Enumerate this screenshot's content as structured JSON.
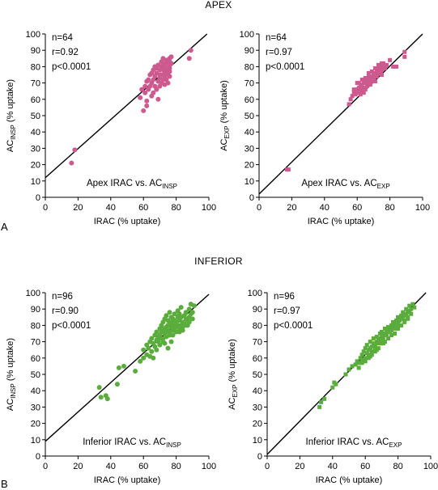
{
  "figure": {
    "section_a_title": "APEX",
    "section_b_title": "INFERIOR",
    "panel_a_letter": "A",
    "panel_b_letter": "B",
    "colors": {
      "apex_marker": "#cc5a8e",
      "inferior_marker": "#5aac3c",
      "line": "#000000"
    }
  },
  "chart_data": [
    {
      "id": "apex_insp",
      "type": "scatter",
      "marker": "circle",
      "xlabel": "IRAC (% uptake)",
      "ylabel_main": "AC",
      "ylabel_sub": "INSP",
      "ylabel_tail": " (% uptake)",
      "annotation_main": "Apex IRAC vs. AC",
      "annotation_sub": "INSP",
      "stats": [
        "n=64",
        "r=0.92",
        "p<0.0001"
      ],
      "xlim": [
        0,
        100
      ],
      "ylim": [
        0,
        100
      ],
      "xticks": [
        "0",
        "20",
        "40",
        "60",
        "80",
        "100"
      ],
      "yticks": [
        "0",
        "10",
        "20",
        "30",
        "40",
        "50",
        "60",
        "70",
        "80",
        "90",
        "100"
      ],
      "fit_line": {
        "intercept": 12,
        "slope": 0.89
      },
      "points": [
        [
          16,
          21
        ],
        [
          18,
          29
        ],
        [
          58,
          61
        ],
        [
          60,
          53
        ],
        [
          61,
          64
        ],
        [
          62,
          56
        ],
        [
          62,
          71
        ],
        [
          63,
          66
        ],
        [
          64,
          68
        ],
        [
          65,
          70
        ],
        [
          65,
          62
        ],
        [
          66,
          72
        ],
        [
          66,
          64
        ],
        [
          67,
          74
        ],
        [
          67,
          68
        ],
        [
          68,
          66
        ],
        [
          68,
          76
        ],
        [
          69,
          71
        ],
        [
          69,
          60
        ],
        [
          70,
          73
        ],
        [
          70,
          78
        ],
        [
          70,
          68
        ],
        [
          71,
          75
        ],
        [
          71,
          80
        ],
        [
          71,
          70
        ],
        [
          72,
          72
        ],
        [
          72,
          78
        ],
        [
          72,
          82
        ],
        [
          73,
          74
        ],
        [
          73,
          76
        ],
        [
          73,
          80
        ],
        [
          73,
          69
        ],
        [
          74,
          78
        ],
        [
          74,
          82
        ],
        [
          74,
          72
        ],
        [
          74,
          75
        ],
        [
          75,
          79
        ],
        [
          75,
          84
        ],
        [
          75,
          70
        ],
        [
          75,
          76
        ],
        [
          76,
          81
        ],
        [
          76,
          74
        ],
        [
          76,
          85
        ],
        [
          76,
          77
        ],
        [
          76,
          79
        ],
        [
          76,
          83
        ],
        [
          77,
          82
        ],
        [
          77,
          86
        ],
        [
          65,
          76
        ],
        [
          66,
          78
        ],
        [
          67,
          80
        ],
        [
          68,
          79
        ],
        [
          69,
          81
        ],
        [
          70,
          75
        ],
        [
          71,
          83
        ],
        [
          63,
          72
        ],
        [
          64,
          75
        ],
        [
          72,
          85
        ],
        [
          61,
          68
        ],
        [
          59,
          66
        ],
        [
          62,
          59
        ],
        [
          89,
          90
        ],
        [
          88,
          85
        ],
        [
          74,
          84
        ]
      ]
    },
    {
      "id": "apex_exp",
      "type": "scatter",
      "marker": "square",
      "xlabel": "IRAC (% uptake)",
      "ylabel_main": "AC",
      "ylabel_sub": "EXP",
      "ylabel_tail": " (% uptake)",
      "annotation_main": "Apex IRAC vs. AC",
      "annotation_sub": "EXP",
      "stats": [
        "n=64",
        "r=0.97",
        "p<0.0001"
      ],
      "xlim": [
        0,
        100
      ],
      "ylim": [
        0,
        100
      ],
      "xticks": [
        "0",
        "20",
        "40",
        "60",
        "80",
        "100"
      ],
      "yticks": [
        "0",
        "10",
        "20",
        "30",
        "40",
        "50",
        "60",
        "70",
        "80",
        "90",
        "100"
      ],
      "fit_line": {
        "intercept": 2,
        "slope": 0.98
      },
      "points": [
        [
          17,
          17
        ],
        [
          18,
          17
        ],
        [
          55,
          57
        ],
        [
          56,
          60
        ],
        [
          57,
          62
        ],
        [
          58,
          64
        ],
        [
          59,
          63
        ],
        [
          60,
          66
        ],
        [
          60,
          64
        ],
        [
          61,
          67
        ],
        [
          62,
          65
        ],
        [
          62,
          69
        ],
        [
          63,
          68
        ],
        [
          63,
          66
        ],
        [
          64,
          70
        ],
        [
          64,
          67
        ],
        [
          65,
          71
        ],
        [
          65,
          66
        ],
        [
          66,
          72
        ],
        [
          66,
          69
        ],
        [
          67,
          70
        ],
        [
          67,
          74
        ],
        [
          68,
          72
        ],
        [
          68,
          69
        ],
        [
          69,
          74
        ],
        [
          69,
          71
        ],
        [
          70,
          76
        ],
        [
          70,
          73
        ],
        [
          71,
          75
        ],
        [
          71,
          71
        ],
        [
          72,
          78
        ],
        [
          72,
          74
        ],
        [
          73,
          77
        ],
        [
          73,
          79
        ],
        [
          74,
          76
        ],
        [
          74,
          80
        ],
        [
          75,
          78
        ],
        [
          75,
          75
        ],
        [
          76,
          80
        ],
        [
          76,
          82
        ],
        [
          77,
          79
        ],
        [
          78,
          81
        ],
        [
          80,
          84
        ],
        [
          82,
          80
        ],
        [
          84,
          80
        ],
        [
          89,
          89
        ],
        [
          89,
          86
        ],
        [
          58,
          66
        ],
        [
          60,
          70
        ],
        [
          61,
          70
        ],
        [
          63,
          72
        ],
        [
          65,
          73
        ],
        [
          67,
          76
        ],
        [
          69,
          77
        ],
        [
          71,
          79
        ],
        [
          73,
          81
        ],
        [
          75,
          82
        ],
        [
          62,
          63
        ],
        [
          64,
          64
        ],
        [
          66,
          68
        ],
        [
          68,
          70
        ],
        [
          70,
          72
        ],
        [
          72,
          76
        ],
        [
          74,
          78
        ]
      ]
    },
    {
      "id": "inferior_insp",
      "type": "scatter",
      "marker": "circle",
      "xlabel": "IRAC (% uptake)",
      "ylabel_main": "AC",
      "ylabel_sub": "INSP",
      "ylabel_tail": " (% uptake)",
      "annotation_main": "Inferior IRAC vs. AC",
      "annotation_sub": "INSP",
      "stats": [
        "n=96",
        "r=0.90",
        "p<0.0001"
      ],
      "xlim": [
        0,
        100
      ],
      "ylim": [
        0,
        100
      ],
      "xticks": [
        "0",
        "20",
        "40",
        "60",
        "80",
        "100"
      ],
      "yticks": [
        "0",
        "10",
        "20",
        "30",
        "40",
        "50",
        "60",
        "70",
        "80",
        "90",
        "100"
      ],
      "fit_line": {
        "intercept": 9,
        "slope": 0.9
      },
      "points": [
        [
          33,
          42
        ],
        [
          34,
          36
        ],
        [
          37,
          37
        ],
        [
          38,
          35
        ],
        [
          44,
          44
        ],
        [
          45,
          54
        ],
        [
          48,
          55
        ],
        [
          55,
          52
        ],
        [
          58,
          58
        ],
        [
          60,
          65
        ],
        [
          60,
          60
        ],
        [
          62,
          62
        ],
        [
          62,
          68
        ],
        [
          63,
          66
        ],
        [
          64,
          70
        ],
        [
          65,
          64
        ],
        [
          65,
          72
        ],
        [
          66,
          69
        ],
        [
          67,
          74
        ],
        [
          67,
          67
        ],
        [
          68,
          71
        ],
        [
          68,
          76
        ],
        [
          69,
          73
        ],
        [
          69,
          70
        ],
        [
          70,
          78
        ],
        [
          70,
          74
        ],
        [
          70,
          68
        ],
        [
          71,
          76
        ],
        [
          71,
          80
        ],
        [
          72,
          72
        ],
        [
          72,
          78
        ],
        [
          72,
          82
        ],
        [
          73,
          75
        ],
        [
          73,
          77
        ],
        [
          73,
          84
        ],
        [
          74,
          79
        ],
        [
          74,
          73
        ],
        [
          74,
          86
        ],
        [
          75,
          80
        ],
        [
          75,
          77
        ],
        [
          75,
          83
        ],
        [
          76,
          81
        ],
        [
          76,
          76
        ],
        [
          76,
          88
        ],
        [
          77,
          82
        ],
        [
          77,
          79
        ],
        [
          77,
          85
        ],
        [
          78,
          80
        ],
        [
          78,
          84
        ],
        [
          78,
          74
        ],
        [
          79,
          83
        ],
        [
          79,
          78
        ],
        [
          79,
          87
        ],
        [
          80,
          82
        ],
        [
          80,
          79
        ],
        [
          80,
          76
        ],
        [
          81,
          85
        ],
        [
          81,
          80
        ],
        [
          81,
          89
        ],
        [
          82,
          83
        ],
        [
          82,
          78
        ],
        [
          82,
          87
        ],
        [
          83,
          80
        ],
        [
          83,
          85
        ],
        [
          83,
          91
        ],
        [
          84,
          82
        ],
        [
          84,
          79
        ],
        [
          85,
          86
        ],
        [
          85,
          81
        ],
        [
          86,
          84
        ],
        [
          86,
          88
        ],
        [
          87,
          80
        ],
        [
          87,
          83
        ],
        [
          88,
          85
        ],
        [
          88,
          90
        ],
        [
          89,
          87
        ],
        [
          89,
          93
        ],
        [
          90,
          88
        ],
        [
          90,
          84
        ],
        [
          91,
          92
        ],
        [
          66,
          60
        ],
        [
          64,
          61
        ],
        [
          68,
          65
        ],
        [
          70,
          72
        ],
        [
          72,
          70
        ],
        [
          74,
          76
        ],
        [
          76,
          74
        ],
        [
          78,
          77
        ],
        [
          80,
          81
        ],
        [
          82,
          76
        ],
        [
          84,
          77
        ],
        [
          86,
          80
        ],
        [
          88,
          82
        ],
        [
          75,
          66
        ],
        [
          77,
          70
        ],
        [
          73,
          69
        ]
      ]
    },
    {
      "id": "inferior_exp",
      "type": "scatter",
      "marker": "square",
      "xlabel": "IRAC (% uptake)",
      "ylabel_main": "AC",
      "ylabel_sub": "EXP",
      "ylabel_tail": " (% uptake)",
      "annotation_main": "Inferior IRAC vs. AC",
      "annotation_sub": "EXP",
      "stats": [
        "n=96",
        "r=0.97",
        "p<0.0001"
      ],
      "xlim": [
        0,
        100
      ],
      "ylim": [
        0,
        100
      ],
      "xticks": [
        "0",
        "20",
        "40",
        "60",
        "80",
        "100"
      ],
      "yticks": [
        "0",
        "10",
        "20",
        "30",
        "40",
        "50",
        "60",
        "70",
        "80",
        "90",
        "100"
      ],
      "fit_line": {
        "intercept": 1,
        "slope": 1.02
      },
      "points": [
        [
          32,
          30
        ],
        [
          33,
          33
        ],
        [
          35,
          35
        ],
        [
          40,
          42
        ],
        [
          41,
          45
        ],
        [
          42,
          44
        ],
        [
          48,
          50
        ],
        [
          50,
          53
        ],
        [
          52,
          55
        ],
        [
          54,
          56
        ],
        [
          55,
          58
        ],
        [
          56,
          54
        ],
        [
          57,
          60
        ],
        [
          58,
          62
        ],
        [
          58,
          57
        ],
        [
          59,
          64
        ],
        [
          60,
          60
        ],
        [
          60,
          66
        ],
        [
          61,
          63
        ],
        [
          61,
          68
        ],
        [
          62,
          62
        ],
        [
          62,
          65
        ],
        [
          63,
          66
        ],
        [
          63,
          70
        ],
        [
          64,
          67
        ],
        [
          64,
          64
        ],
        [
          65,
          69
        ],
        [
          65,
          72
        ],
        [
          66,
          68
        ],
        [
          66,
          66
        ],
        [
          67,
          70
        ],
        [
          67,
          73
        ],
        [
          68,
          71
        ],
        [
          68,
          69
        ],
        [
          69,
          72
        ],
        [
          69,
          75
        ],
        [
          70,
          73
        ],
        [
          70,
          71
        ],
        [
          70,
          76
        ],
        [
          71,
          74
        ],
        [
          71,
          72
        ],
        [
          72,
          75
        ],
        [
          72,
          78
        ],
        [
          73,
          76
        ],
        [
          73,
          74
        ],
        [
          74,
          77
        ],
        [
          74,
          79
        ],
        [
          75,
          78
        ],
        [
          75,
          76
        ],
        [
          76,
          80
        ],
        [
          76,
          77
        ],
        [
          77,
          79
        ],
        [
          77,
          82
        ],
        [
          78,
          81
        ],
        [
          78,
          78
        ],
        [
          79,
          80
        ],
        [
          79,
          83
        ],
        [
          80,
          82
        ],
        [
          80,
          85
        ],
        [
          81,
          83
        ],
        [
          81,
          80
        ],
        [
          82,
          84
        ],
        [
          82,
          86
        ],
        [
          83,
          85
        ],
        [
          83,
          88
        ],
        [
          84,
          86
        ],
        [
          84,
          83
        ],
        [
          85,
          87
        ],
        [
          85,
          90
        ],
        [
          86,
          88
        ],
        [
          86,
          85
        ],
        [
          87,
          89
        ],
        [
          87,
          92
        ],
        [
          88,
          90
        ],
        [
          88,
          87
        ],
        [
          89,
          93
        ],
        [
          90,
          91
        ],
        [
          76,
          74
        ],
        [
          74,
          72
        ],
        [
          72,
          70
        ],
        [
          70,
          69
        ],
        [
          68,
          66
        ],
        [
          66,
          64
        ],
        [
          64,
          62
        ],
        [
          62,
          60
        ],
        [
          60,
          58
        ],
        [
          78,
          75
        ],
        [
          80,
          78
        ],
        [
          82,
          80
        ],
        [
          84,
          82
        ],
        [
          86,
          84
        ],
        [
          58,
          59
        ],
        [
          56,
          57
        ],
        [
          63,
          61
        ],
        [
          67,
          65
        ],
        [
          71,
          69
        ]
      ]
    }
  ]
}
